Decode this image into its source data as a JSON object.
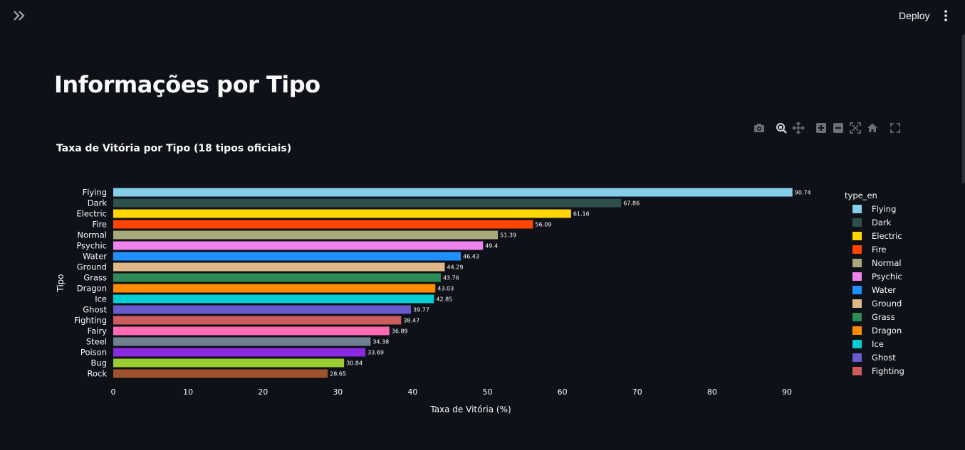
{
  "header": {
    "deploy_label": "Deploy"
  },
  "page": {
    "title": "Informações por Tipo"
  },
  "icons": {
    "sidebar_toggle": "double-chevron-right-icon",
    "menu": "vertical-ellipsis-icon",
    "modebar": [
      "camera-icon",
      "zoom-icon",
      "pan-icon",
      "zoom-in-icon",
      "zoom-out-icon",
      "autoscale-icon",
      "home-icon",
      "fullscreen-icon"
    ]
  },
  "chart_data": {
    "type": "bar",
    "orientation": "horizontal",
    "title": "Taxa de Vitória por Tipo (18 tipos oficiais)",
    "xlabel": "Taxa de Vitória (%)",
    "ylabel": "Tipo",
    "xlim": [
      0,
      94
    ],
    "xticks": [
      0,
      10,
      20,
      30,
      40,
      50,
      60,
      70,
      80,
      90
    ],
    "grid": false,
    "legend_title": "type_en",
    "legend_position": "right",
    "categories": [
      "Flying",
      "Dark",
      "Electric",
      "Fire",
      "Normal",
      "Psychic",
      "Water",
      "Ground",
      "Grass",
      "Dragon",
      "Ice",
      "Ghost",
      "Fighting",
      "Fairy",
      "Steel",
      "Poison",
      "Bug",
      "Rock"
    ],
    "values": [
      90.74,
      67.86,
      61.16,
      56.09,
      51.39,
      49.4,
      46.43,
      44.29,
      43.76,
      43.03,
      42.85,
      39.77,
      38.47,
      36.89,
      34.38,
      33.69,
      30.84,
      28.65
    ],
    "value_labels": [
      "90.74",
      "67.86",
      "61.16",
      "56.09",
      "51.39",
      "49.4",
      "46.43",
      "44.29",
      "43.76",
      "43.03",
      "42.85",
      "39.77",
      "38.47",
      "36.89",
      "34.38",
      "33.69",
      "30.84",
      "28.65"
    ],
    "colors": [
      "#87ceeb",
      "#2f4f4f",
      "#ffd700",
      "#ff4500",
      "#a8a878",
      "#ee82ee",
      "#1e90ff",
      "#deb887",
      "#2e8b57",
      "#ff8c00",
      "#00ced1",
      "#6a5acd",
      "#cd5c5c",
      "#ff69b4",
      "#708090",
      "#8a2be2",
      "#9acd32",
      "#a0522d"
    ],
    "legend_entries": [
      "Flying",
      "Dark",
      "Electric",
      "Fire",
      "Normal",
      "Psychic",
      "Water",
      "Ground",
      "Grass",
      "Dragon",
      "Ice",
      "Ghost",
      "Fighting"
    ]
  }
}
